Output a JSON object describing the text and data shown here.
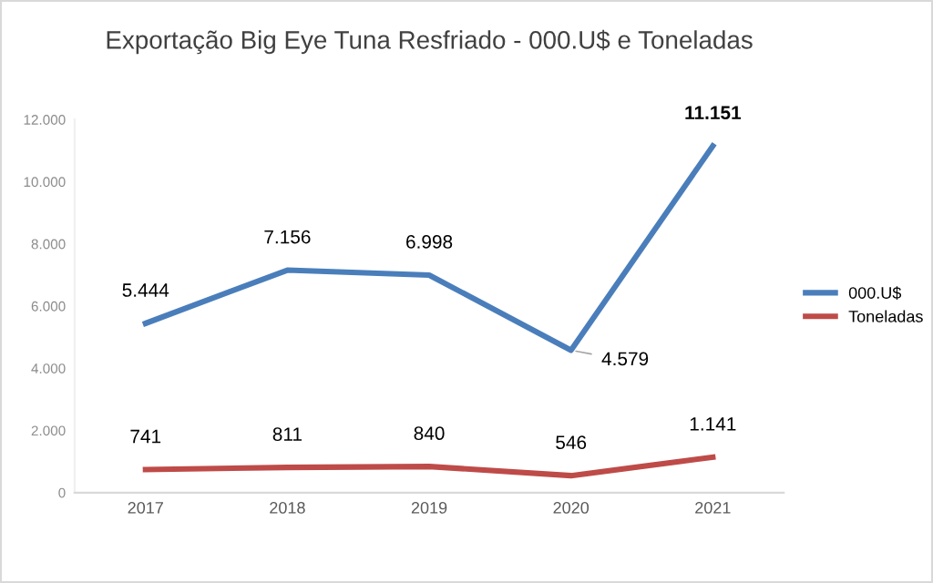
{
  "chart_data": {
    "type": "line",
    "title": "Exportação Big Eye Tuna Resfriado - 000.U$ e Toneladas",
    "categories": [
      "2017",
      "2018",
      "2019",
      "2020",
      "2021"
    ],
    "series": [
      {
        "name": "000.U$",
        "color": "#4a7ebb",
        "values": [
          5444,
          7156,
          6998,
          4579,
          11151
        ],
        "value_labels": [
          "5.444",
          "7.156",
          "6.998",
          "4.579",
          "11.151"
        ]
      },
      {
        "name": "Toneladas",
        "color": "#be4b48",
        "values": [
          741,
          811,
          840,
          546,
          1141
        ],
        "value_labels": [
          "741",
          "811",
          "840",
          "546",
          "1.141"
        ]
      }
    ],
    "ylim": [
      0,
      12000
    ],
    "yticks": [
      {
        "value": 0,
        "label": "0"
      },
      {
        "value": 2000,
        "label": "2.000"
      },
      {
        "value": 4000,
        "label": "4.000"
      },
      {
        "value": 6000,
        "label": "6.000"
      },
      {
        "value": 8000,
        "label": "8.000"
      },
      {
        "value": 10000,
        "label": "10.000"
      },
      {
        "value": 12000,
        "label": "12.000"
      }
    ],
    "grid": false,
    "legend": "right",
    "marker": "none",
    "line_style": "solid"
  }
}
